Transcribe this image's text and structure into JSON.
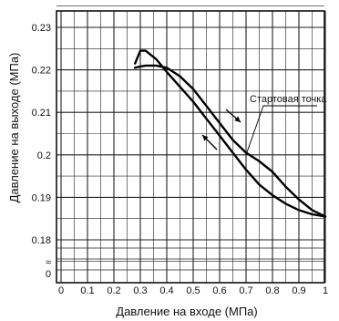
{
  "chart_data": {
    "type": "line",
    "xlabel": "Давление на входе (МПа)",
    "ylabel": "Давление на выходе (МПа)",
    "x_ticks": [
      "0",
      "0.1",
      "0.2",
      "0.3",
      "0.4",
      "0.5",
      "0.6",
      "0.7",
      "0.8",
      "0.9",
      "1"
    ],
    "y_ticks": [
      "0.18",
      "0.19",
      "0.2",
      "0.21",
      "0.22",
      "0.23"
    ],
    "y_zero_label": "0",
    "y_break_symbol": "≈",
    "xlim": [
      0,
      1.0
    ],
    "ylim": [
      0.175,
      0.235
    ],
    "grid": true,
    "series": [
      {
        "name": "",
        "x": [
          0.28,
          0.3,
          0.32,
          0.36,
          0.4,
          0.45,
          0.5,
          0.55,
          0.6,
          0.65,
          0.7,
          0.75,
          0.8,
          0.85,
          0.9,
          0.95,
          1.0
        ],
        "y": [
          0.2215,
          0.2245,
          0.2245,
          0.2225,
          0.2195,
          0.216,
          0.2125,
          0.2085,
          0.2045,
          0.2005,
          0.1965,
          0.193,
          0.1905,
          0.1885,
          0.187,
          0.186,
          0.1855
        ]
      },
      {
        "name": "",
        "x": [
          1.0,
          0.95,
          0.9,
          0.85,
          0.8,
          0.75,
          0.7,
          0.65,
          0.6,
          0.55,
          0.5,
          0.45,
          0.4,
          0.36,
          0.32,
          0.3,
          0.28
        ],
        "y": [
          0.1855,
          0.187,
          0.1895,
          0.1925,
          0.196,
          0.1985,
          0.2005,
          0.2035,
          0.2075,
          0.2115,
          0.2155,
          0.2185,
          0.2205,
          0.221,
          0.221,
          0.2208,
          0.2205
        ]
      }
    ],
    "annotations": [
      {
        "text": "Стартовая точка",
        "x": 0.7,
        "y": 0.2
      }
    ]
  }
}
